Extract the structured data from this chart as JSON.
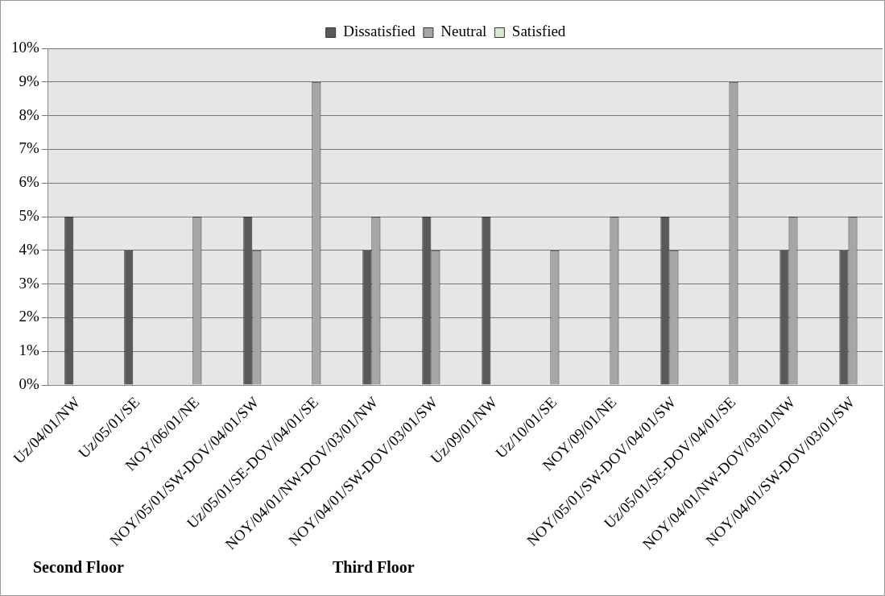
{
  "chart_data": {
    "type": "bar",
    "categories": [
      "Uz/04/01/NW",
      "Uz/05/01/SE",
      "NOY/06/01/NE",
      "NOY/05/01/SW-DOV/04/01/SW",
      "Uz/05/01/SE-DOV/04/01/SE",
      "NOY/04/01/NW-DOV/03/01/NW",
      "NOY/04/01/SW-DOV/03/01/SW",
      "Uz/09/01/NW",
      "Uz/10/01/SE",
      "NOY/09/01/NE",
      "NOY/05/01/SW-DOV/04/01/SW",
      "Uz/05/01/SE-DOV/04/01/SE",
      "NOY/04/01/NW-DOV/03/01/NW",
      "NOY/04/01/SW-DOV/03/01/SW"
    ],
    "series": [
      {
        "name": "Dissatisfied",
        "color": "#595959",
        "values": [
          5,
          4,
          null,
          5,
          null,
          4,
          5,
          5,
          null,
          null,
          5,
          null,
          4,
          4
        ]
      },
      {
        "name": "Neutral",
        "color": "#a6a6a6",
        "values": [
          null,
          null,
          5,
          4,
          9,
          5,
          4,
          null,
          4,
          5,
          4,
          9,
          5,
          5
        ]
      },
      {
        "name": "Satisfied",
        "color": "#d8e8d0",
        "values": [
          null,
          null,
          null,
          null,
          null,
          null,
          null,
          null,
          null,
          null,
          null,
          null,
          null,
          null
        ]
      }
    ],
    "ylim": [
      0,
      10
    ],
    "yticks": [
      {
        "value": 0,
        "label": "0%"
      },
      {
        "value": 1,
        "label": "1%"
      },
      {
        "value": 2,
        "label": "2%"
      },
      {
        "value": 3,
        "label": "3%"
      },
      {
        "value": 4,
        "label": "4%"
      },
      {
        "value": 5,
        "label": "5%"
      },
      {
        "value": 6,
        "label": "6%"
      },
      {
        "value": 7,
        "label": "7%"
      },
      {
        "value": 8,
        "label": "8%"
      },
      {
        "value": 9,
        "label": "9%"
      },
      {
        "value": 10,
        "label": "10%"
      }
    ],
    "grid": "y",
    "legend": "top",
    "annotations": [
      "Second Floor",
      "Third Floor"
    ]
  }
}
